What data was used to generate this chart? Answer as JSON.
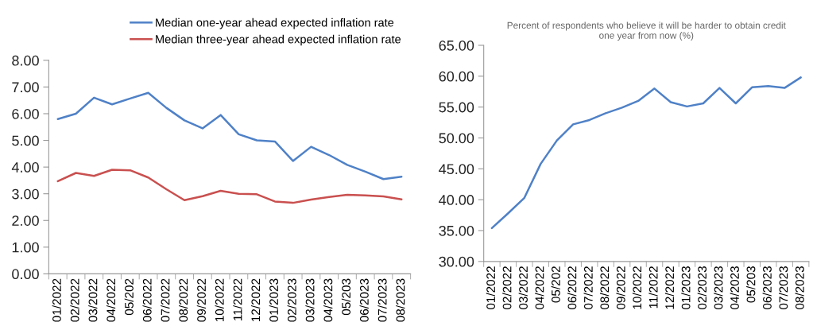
{
  "chart_data": [
    {
      "type": "line",
      "categories": [
        "01/2022",
        "02/2022",
        "03/2022",
        "04/2022",
        "05/202",
        "06/2022",
        "07/2022",
        "08/2022",
        "09/2022",
        "10/2022",
        "11/2022",
        "12/2022",
        "01/2023",
        "02/2023",
        "03/2023",
        "04/2023",
        "05/203",
        "06/2023",
        "07/2023",
        "08/2023"
      ],
      "series": [
        {
          "name": "Median one-year ahead expected inflation rate",
          "color": "#4f81c7",
          "values": [
            5.8,
            6.0,
            6.6,
            6.35,
            6.57,
            6.78,
            6.22,
            5.75,
            5.45,
            5.95,
            5.23,
            5.0,
            4.96,
            4.23,
            4.76,
            4.45,
            4.08,
            3.83,
            3.55,
            3.64
          ]
        },
        {
          "name": "Median three-year ahead expected inflation rate",
          "color": "#c9504f",
          "values": [
            3.47,
            3.78,
            3.67,
            3.9,
            3.88,
            3.61,
            3.17,
            2.76,
            2.91,
            3.11,
            3.0,
            2.98,
            2.71,
            2.66,
            2.78,
            2.88,
            2.96,
            2.94,
            2.9,
            2.79
          ]
        }
      ],
      "ylim": [
        0,
        8
      ],
      "yticks": [
        {
          "value": 0,
          "label": "0.00"
        },
        {
          "value": 1,
          "label": "1.00"
        },
        {
          "value": 2,
          "label": "2.00"
        },
        {
          "value": 3,
          "label": "3.00"
        },
        {
          "value": 4,
          "label": "4.00"
        },
        {
          "value": 5,
          "label": "5.00"
        },
        {
          "value": 6,
          "label": "6.00"
        },
        {
          "value": 7,
          "label": "7.00"
        },
        {
          "value": 8,
          "label": "8.00"
        }
      ],
      "legend": "top",
      "grid": false
    },
    {
      "type": "line",
      "title": "Percent of respondents who believe it will be harder to obtain credit\none year from now (%)",
      "categories": [
        "01/2022",
        "02/2022",
        "03/2022",
        "04/2022",
        "05/202",
        "06/2022",
        "07/2022",
        "08/2022",
        "09/2022",
        "10/2022",
        "11/2022",
        "12/2022",
        "01/2023",
        "02/2023",
        "03/2023",
        "04/2023",
        "05/203",
        "06/2023",
        "07/2023",
        "08/2023"
      ],
      "series": [
        {
          "color": "#4f81c7",
          "values": [
            35.4,
            37.8,
            40.3,
            45.8,
            49.6,
            52.2,
            52.9,
            54.0,
            54.9,
            56.0,
            58.0,
            55.8,
            55.1,
            55.6,
            58.1,
            55.6,
            58.2,
            58.4,
            58.1,
            59.8
          ]
        }
      ],
      "ylim": [
        30,
        65
      ],
      "yticks": [
        {
          "value": 30,
          "label": "30.00"
        },
        {
          "value": 35,
          "label": "35.00"
        },
        {
          "value": 40,
          "label": "40.00"
        },
        {
          "value": 45,
          "label": "45.00"
        },
        {
          "value": 50,
          "label": "50.00"
        },
        {
          "value": 55,
          "label": "55.00"
        },
        {
          "value": 60,
          "label": "60.00"
        },
        {
          "value": 65,
          "label": "65.00"
        }
      ],
      "grid": false
    }
  ]
}
